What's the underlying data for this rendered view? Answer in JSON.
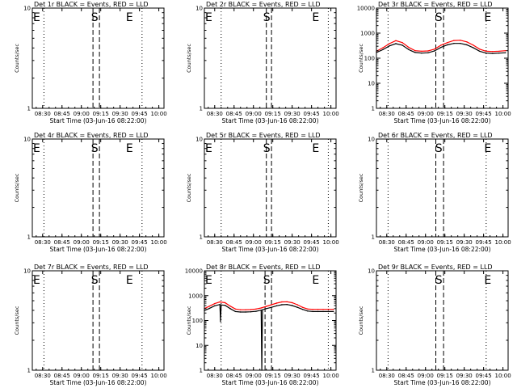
{
  "chart_data": [
    {
      "type": "line",
      "title": "Det 1r BLACK = Events, RED = LLD",
      "ylabel": "Counts/sec",
      "xlabel": "Start Time (03-Jun-16 08:22:00)",
      "xticks": [
        "08:30",
        "08:45",
        "09:00",
        "09:15",
        "09:30",
        "09:45",
        "10:00"
      ],
      "xlim": [
        "08:22",
        "10:04"
      ],
      "yscale": "log",
      "ylim": [
        1,
        10
      ],
      "yticks": [
        "1",
        "10"
      ],
      "markers": [
        {
          "label": "E",
          "time": "08:22"
        },
        {
          "label": "S",
          "time": "09:10"
        },
        {
          "label": "E",
          "time": "09:37"
        }
      ],
      "dotted_lines": [
        "08:31",
        "09:47"
      ],
      "dashed_lines": [
        "09:09",
        "09:14"
      ],
      "series": []
    },
    {
      "type": "line",
      "title": "Det 2r BLACK = Events, RED = LLD",
      "ylabel": "Counts/sec",
      "xlabel": "Start Time (03-Jun-16 08:22:00)",
      "xticks": [
        "08:30",
        "08:45",
        "09:00",
        "09:15",
        "09:30",
        "09:45",
        "10:00"
      ],
      "xlim": [
        "08:22",
        "10:04"
      ],
      "yscale": "log",
      "ylim": [
        1,
        10
      ],
      "yticks": [
        "1",
        "10"
      ],
      "markers": [
        {
          "label": "E",
          "time": "08:22"
        },
        {
          "label": "S",
          "time": "09:10"
        },
        {
          "label": "E",
          "time": "09:48"
        }
      ],
      "dotted_lines": [
        "08:35",
        "09:58"
      ],
      "dashed_lines": [
        "09:10",
        "09:14"
      ],
      "series": []
    },
    {
      "type": "line",
      "title": "Det 3r BLACK = Events, RED = LLD",
      "ylabel": "Counts/sec",
      "xlabel": "Start Time (03-Jun-16 08:22:00)",
      "xticks": [
        "08:30",
        "08:45",
        "09:00",
        "09:15",
        "09:30",
        "09:45",
        "10:00"
      ],
      "xlim": [
        "08:22",
        "10:04"
      ],
      "yscale": "log",
      "ylim": [
        1,
        10000
      ],
      "yticks": [
        "1",
        "10",
        "100",
        "1000",
        "10000"
      ],
      "markers": [
        {
          "label": "S",
          "time": "09:10"
        },
        {
          "label": "E",
          "time": "09:48"
        }
      ],
      "dotted_lines": [
        "08:31",
        "09:47"
      ],
      "dashed_lines": [
        "09:08",
        "09:14"
      ],
      "series": [
        {
          "name": "LLD",
          "color": "#ff0000",
          "x": [
            "08:22",
            "08:27",
            "08:32",
            "08:37",
            "08:42",
            "08:47",
            "08:52",
            "08:57",
            "09:02",
            "09:07",
            "09:12",
            "09:17",
            "09:22",
            "09:27",
            "09:32",
            "09:37",
            "09:42",
            "09:47",
            "09:52",
            "09:57",
            "10:02"
          ],
          "y": [
            190,
            260,
            380,
            500,
            420,
            270,
            200,
            190,
            195,
            230,
            330,
            420,
            510,
            520,
            450,
            330,
            230,
            190,
            185,
            190,
            200
          ]
        },
        {
          "name": "Events",
          "color": "#000000",
          "x": [
            "08:22",
            "08:27",
            "08:32",
            "08:37",
            "08:42",
            "08:47",
            "08:52",
            "08:57",
            "09:02",
            "09:07",
            "09:12",
            "09:17",
            "09:22",
            "09:27",
            "09:32",
            "09:37",
            "09:42",
            "09:47",
            "09:52",
            "09:57",
            "10:02"
          ],
          "y": [
            170,
            220,
            310,
            380,
            330,
            220,
            170,
            160,
            165,
            195,
            270,
            340,
            390,
            390,
            340,
            260,
            190,
            160,
            155,
            160,
            165
          ]
        }
      ]
    },
    {
      "type": "line",
      "title": "Det 4r BLACK = Events, RED = LLD",
      "ylabel": "Counts/sec",
      "xlabel": "Start Time (03-Jun-16 08:22:00)",
      "xticks": [
        "08:30",
        "08:45",
        "09:00",
        "09:15",
        "09:30",
        "09:45",
        "10:00"
      ],
      "xlim": [
        "08:22",
        "10:04"
      ],
      "yscale": "log",
      "ylim": [
        1,
        10
      ],
      "yticks": [
        "1",
        "10"
      ],
      "markers": [
        {
          "label": "E",
          "time": "08:22"
        },
        {
          "label": "S",
          "time": "09:10"
        },
        {
          "label": "E",
          "time": "09:37"
        }
      ],
      "dotted_lines": [
        "08:31",
        "09:47"
      ],
      "dashed_lines": [
        "09:09",
        "09:14"
      ],
      "series": []
    },
    {
      "type": "line",
      "title": "Det 5r BLACK = Events, RED = LLD",
      "ylabel": "Counts/sec",
      "xlabel": "Start Time (03-Jun-16 08:22:00)",
      "xticks": [
        "08:30",
        "08:45",
        "09:00",
        "09:15",
        "09:30",
        "09:45",
        "10:00"
      ],
      "xlim": [
        "08:22",
        "10:04"
      ],
      "yscale": "log",
      "ylim": [
        1,
        10
      ],
      "yticks": [
        "1",
        "10"
      ],
      "markers": [
        {
          "label": "E",
          "time": "08:22"
        },
        {
          "label": "S",
          "time": "09:10"
        },
        {
          "label": "E",
          "time": "09:48"
        }
      ],
      "dotted_lines": [
        "08:35",
        "09:58"
      ],
      "dashed_lines": [
        "09:10",
        "09:14"
      ],
      "series": []
    },
    {
      "type": "line",
      "title": "Det 6r BLACK = Events, RED = LLD",
      "ylabel": "Counts/sec",
      "xlabel": "Start Time (03-Jun-16 08:22:00)",
      "xticks": [
        "08:30",
        "08:45",
        "09:00",
        "09:15",
        "09:30",
        "09:45",
        "10:00"
      ],
      "xlim": [
        "08:22",
        "10:04"
      ],
      "yscale": "log",
      "ylim": [
        1,
        10
      ],
      "yticks": [
        "1",
        "10"
      ],
      "markers": [
        {
          "label": "S",
          "time": "09:10"
        },
        {
          "label": "E",
          "time": "09:48"
        }
      ],
      "dotted_lines": [
        "08:31",
        "09:47"
      ],
      "dashed_lines": [
        "09:08",
        "09:14"
      ],
      "series": []
    },
    {
      "type": "line",
      "title": "Det 7r BLACK = Events, RED = LLD",
      "ylabel": "Counts/sec",
      "xlabel": "Start Time (03-Jun-16 08:22:00)",
      "xticks": [
        "08:30",
        "08:45",
        "09:00",
        "09:15",
        "09:30",
        "09:45",
        "10:00"
      ],
      "xlim": [
        "08:22",
        "10:04"
      ],
      "yscale": "log",
      "ylim": [
        1,
        10
      ],
      "yticks": [
        "1",
        "10"
      ],
      "markers": [
        {
          "label": "E",
          "time": "08:22"
        },
        {
          "label": "S",
          "time": "09:10"
        },
        {
          "label": "E",
          "time": "09:37"
        }
      ],
      "dotted_lines": [
        "08:31",
        "09:47"
      ],
      "dashed_lines": [
        "09:09",
        "09:14"
      ],
      "series": []
    },
    {
      "type": "line",
      "title": "Det 8r BLACK = Events, RED = LLD",
      "ylabel": "Counts/sec",
      "xlabel": "Start Time (03-Jun-16 08:22:00)",
      "xticks": [
        "08:30",
        "08:45",
        "09:00",
        "09:15",
        "09:30",
        "09:45",
        "10:00"
      ],
      "xlim": [
        "08:22",
        "10:04"
      ],
      "yscale": "log",
      "ylim": [
        1,
        10000
      ],
      "yticks": [
        "1",
        "10",
        "100",
        "1000",
        "10000"
      ],
      "markers": [
        {
          "label": "E",
          "time": "08:22"
        },
        {
          "label": "S",
          "time": "09:10"
        },
        {
          "label": "E",
          "time": "09:48"
        }
      ],
      "dotted_lines": [
        "08:35",
        "09:58"
      ],
      "dashed_lines": [
        "09:09",
        "09:14"
      ],
      "series": [
        {
          "name": "LLD",
          "color": "#ff0000",
          "x": [
            "08:22",
            "08:26",
            "08:30",
            "08:34",
            "08:38",
            "08:42",
            "08:46",
            "08:50",
            "08:54",
            "08:58",
            "09:02",
            "09:06",
            "09:10",
            "09:14",
            "09:18",
            "09:22",
            "09:26",
            "09:30",
            "09:34",
            "09:38",
            "09:42",
            "09:46",
            "09:50",
            "09:54",
            "09:58",
            "10:02"
          ],
          "y": [
            300,
            380,
            480,
            560,
            520,
            380,
            290,
            270,
            270,
            275,
            290,
            320,
            370,
            430,
            500,
            560,
            570,
            520,
            430,
            340,
            290,
            280,
            280,
            280,
            280,
            280
          ]
        },
        {
          "name": "Events",
          "color": "#000000",
          "x": [
            "08:22",
            "08:26",
            "08:30",
            "08:34",
            "08:34.5",
            "08:35",
            "08:38",
            "08:42",
            "08:46",
            "08:50",
            "08:54",
            "08:58",
            "09:02",
            "09:06",
            "09:06.5",
            "09:07",
            "09:10",
            "09:14",
            "09:18",
            "09:22",
            "09:26",
            "09:30",
            "09:34",
            "09:38",
            "09:42",
            "09:46",
            "09:50",
            "09:54",
            "09:58",
            "10:02"
          ],
          "y": [
            250,
            310,
            390,
            440,
            90,
            420,
            410,
            300,
            230,
            220,
            220,
            225,
            235,
            260,
            1,
            270,
            300,
            340,
            390,
            430,
            440,
            400,
            340,
            280,
            240,
            230,
            230,
            230,
            230,
            230
          ]
        }
      ]
    },
    {
      "type": "line",
      "title": "Det 9r BLACK = Events, RED = LLD",
      "ylabel": "Counts/sec",
      "xlabel": "Start Time (03-Jun-16 08:22:00)",
      "xticks": [
        "08:30",
        "08:45",
        "09:00",
        "09:15",
        "09:30",
        "09:45",
        "10:00"
      ],
      "xlim": [
        "08:22",
        "10:04"
      ],
      "yscale": "log",
      "ylim": [
        1,
        10
      ],
      "yticks": [
        "1",
        "10"
      ],
      "markers": [
        {
          "label": "S",
          "time": "09:10"
        },
        {
          "label": "E",
          "time": "09:48"
        }
      ],
      "dotted_lines": [
        "08:31",
        "09:47"
      ],
      "dashed_lines": [
        "09:08",
        "09:14"
      ],
      "series": []
    }
  ]
}
